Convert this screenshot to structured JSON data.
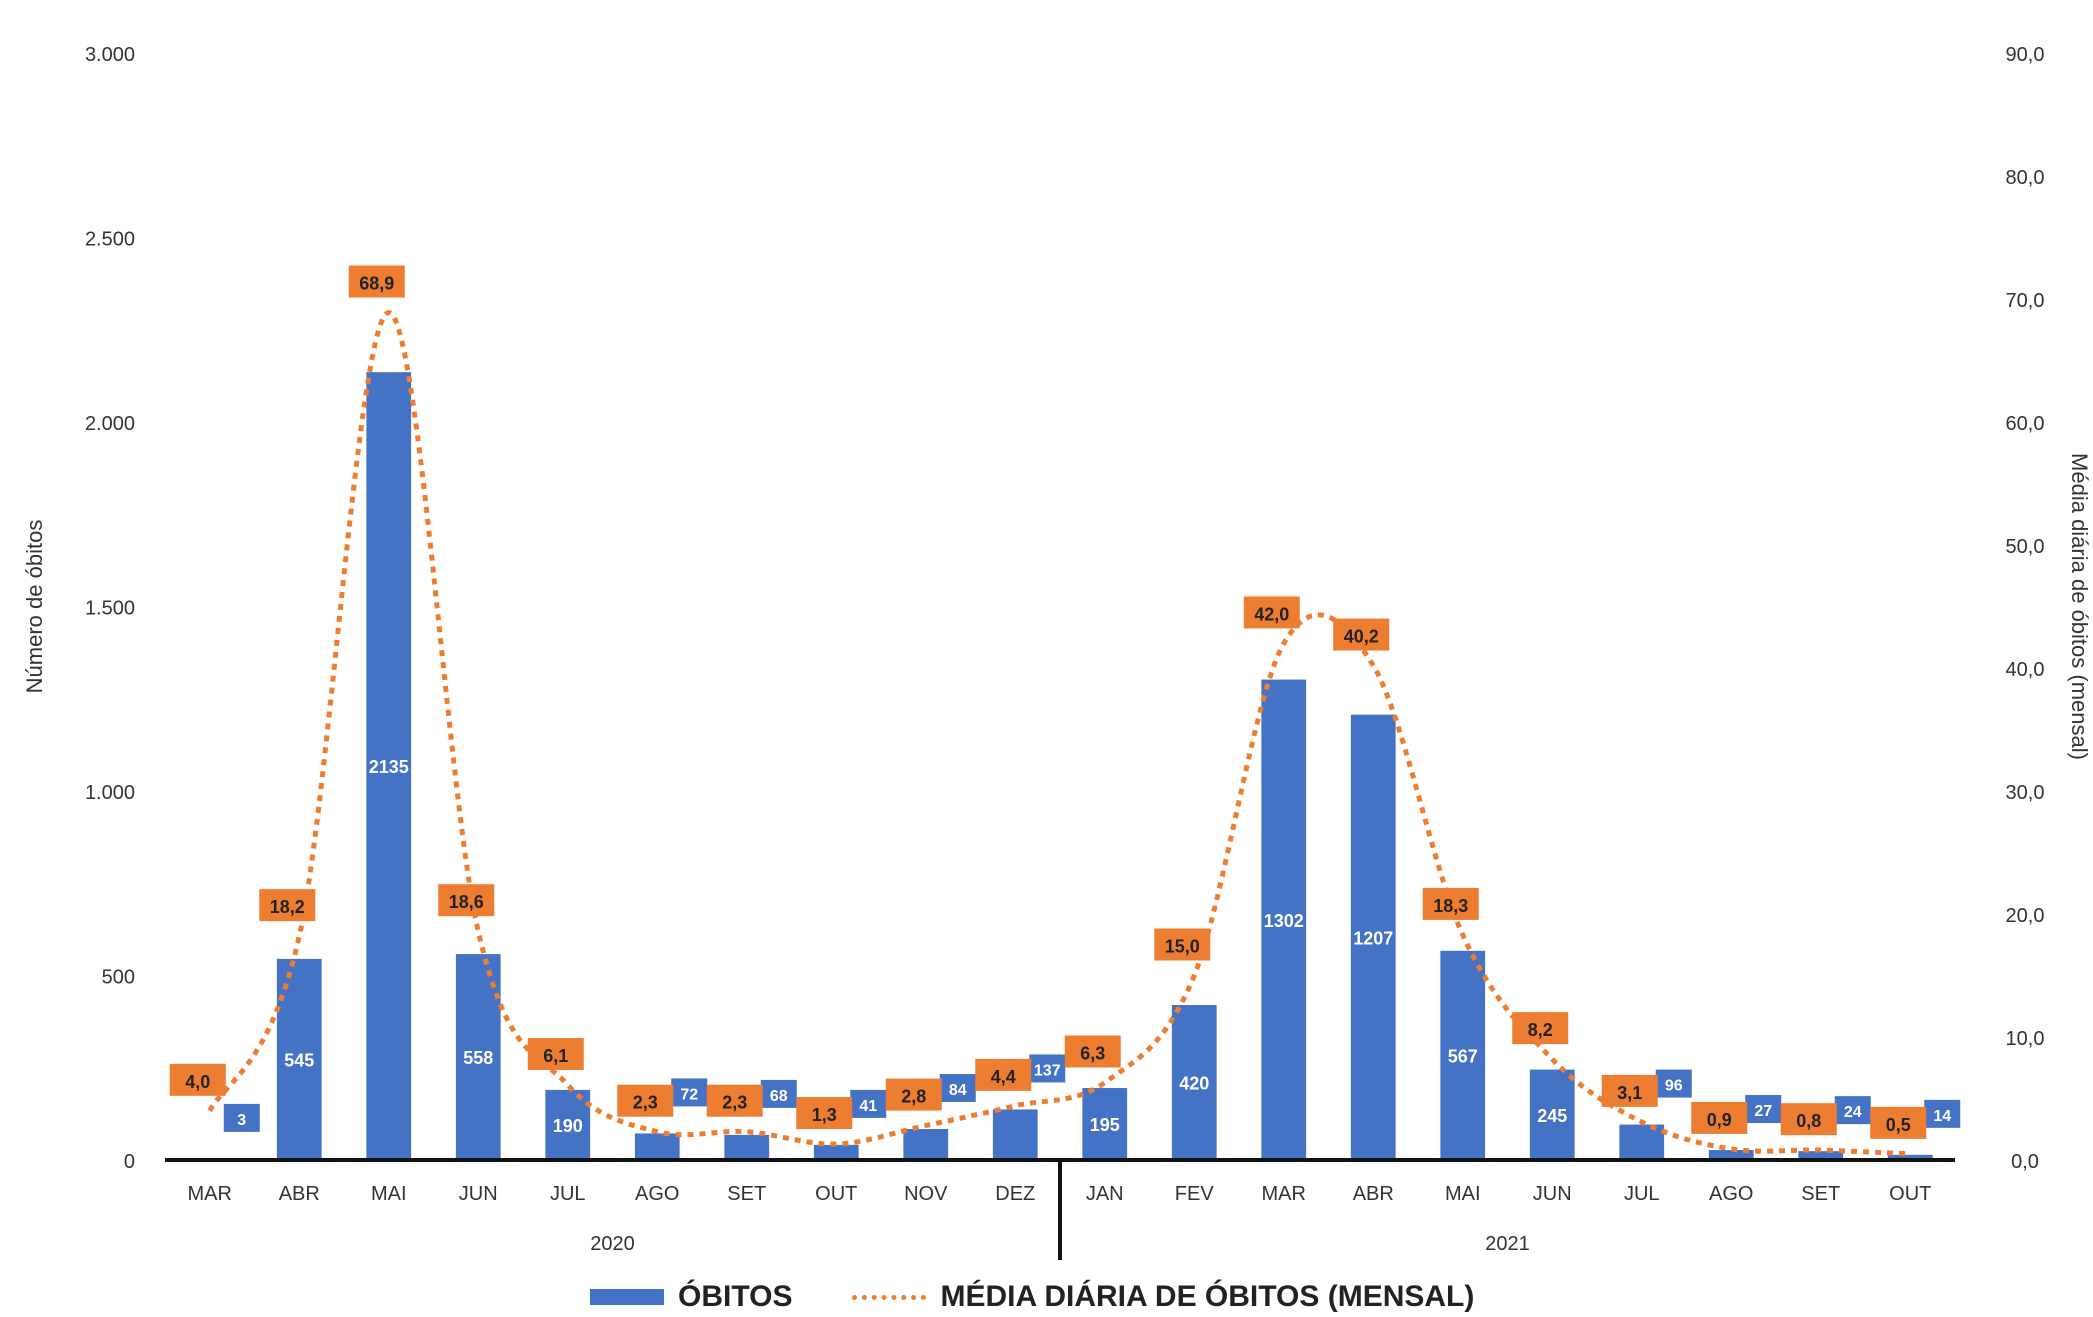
{
  "chart_data": {
    "type": "bar",
    "title": "",
    "categories": [
      "MAR",
      "ABR",
      "MAI",
      "JUN",
      "JUL",
      "AGO",
      "SET",
      "OUT",
      "NOV",
      "DEZ",
      "JAN",
      "FEV",
      "MAR",
      "ABR",
      "MAI",
      "JUN",
      "JUL",
      "AGO",
      "SET",
      "OUT"
    ],
    "groups": [
      {
        "label": "2020",
        "start": 0,
        "end": 9
      },
      {
        "label": "2021",
        "start": 10,
        "end": 19
      }
    ],
    "series": [
      {
        "name": "ÓBITOS",
        "axis": "left",
        "type": "bar",
        "color": "#4472C4",
        "values": [
          3,
          545,
          2135,
          558,
          190,
          72,
          68,
          41,
          84,
          137,
          195,
          420,
          1302,
          1207,
          567,
          245,
          96,
          27,
          24,
          14
        ],
        "labels": [
          "3",
          "545",
          "2135",
          "558",
          "190",
          "72",
          "68",
          "41",
          "84",
          "137",
          "195",
          "420",
          "1302",
          "1207",
          "567",
          "245",
          "96",
          "27",
          "24",
          "14"
        ]
      },
      {
        "name": "MÉDIA DIÁRIA DE ÓBITOS (MENSAL)",
        "axis": "right",
        "type": "line",
        "style": "dotted",
        "color": "#ED7D31",
        "values": [
          4.0,
          18.2,
          68.9,
          18.6,
          6.1,
          2.3,
          2.3,
          1.3,
          2.8,
          4.4,
          6.3,
          15.0,
          42.0,
          40.2,
          18.3,
          8.2,
          3.1,
          0.9,
          0.8,
          0.5
        ],
        "labels": [
          "4,0",
          "18,2",
          "68,9",
          "18,6",
          "6,1",
          "2,3",
          "2,3",
          "1,3",
          "2,8",
          "4,4",
          "6,3",
          "15,0",
          "42,0",
          "40,2",
          "18,3",
          "8,2",
          "3,1",
          "0,9",
          "0,8",
          "0,5"
        ]
      }
    ],
    "ylabel": "Número de óbitos",
    "y2label": "Média diária de óbitos (mensal)",
    "ylim": [
      0,
      3000
    ],
    "yticks": [
      0,
      500,
      1000,
      1500,
      2000,
      2500,
      3000
    ],
    "yticklabels": [
      "0",
      "500",
      "1.000",
      "1.500",
      "2.000",
      "2.500",
      "3.000"
    ],
    "y2lim": [
      0,
      90
    ],
    "y2ticks": [
      0,
      10,
      20,
      30,
      40,
      50,
      60,
      70,
      80,
      90
    ],
    "y2ticklabels": [
      "0,0",
      "10,0",
      "20,0",
      "30,0",
      "40,0",
      "50,0",
      "60,0",
      "70,0",
      "80,0",
      "90,0"
    ],
    "grid": false,
    "legend_position": "bottom"
  }
}
